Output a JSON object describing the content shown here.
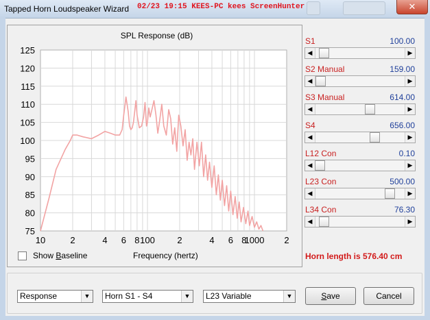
{
  "window": {
    "title": "Tapped Horn Loudspeaker Wizard",
    "watermark": "02/23  19:15  KEES-PC  kees  ScreenHunter",
    "close_glyph": "✕"
  },
  "chart_data": {
    "type": "line",
    "title": "SPL Response (dB)",
    "xlabel": "Frequency (hertz)",
    "ylabel": "",
    "x_scale": "log",
    "xlim": [
      10,
      2000
    ],
    "ylim": [
      75,
      125
    ],
    "grid": true,
    "y_ticks": [
      "125",
      "120",
      "115",
      "110",
      "105",
      "100",
      "95",
      "90",
      "85",
      "80",
      "75"
    ],
    "x_ticks": [
      {
        "x": 10,
        "label": "10"
      },
      {
        "x": 20,
        "label": "2"
      },
      {
        "x": 40,
        "label": "4"
      },
      {
        "x": 60,
        "label": "6"
      },
      {
        "x": 80,
        "label": "8"
      },
      {
        "x": 100,
        "label": "100"
      },
      {
        "x": 200,
        "label": "2"
      },
      {
        "x": 400,
        "label": "4"
      },
      {
        "x": 600,
        "label": "6"
      },
      {
        "x": 800,
        "label": "8"
      },
      {
        "x": 1000,
        "label": "1000"
      },
      {
        "x": 2000,
        "label": "2"
      }
    ],
    "line_color": "#f2a3a3",
    "series": [
      {
        "x": [
          10,
          12,
          14,
          17,
          19,
          20,
          22,
          25,
          30,
          35,
          40,
          45,
          50,
          55,
          58,
          60,
          63,
          66,
          68,
          70,
          72,
          74,
          76,
          78,
          80,
          84,
          88,
          92,
          95,
          98,
          100,
          103,
          106,
          110,
          115,
          120,
          125,
          130,
          136,
          142,
          150,
          158,
          165,
          172,
          180,
          188,
          196,
          205,
          215,
          225,
          235,
          245,
          255,
          265,
          275,
          290,
          305,
          320,
          335,
          350,
          365,
          380,
          400,
          420,
          440,
          460,
          480,
          500,
          525,
          550,
          575,
          600,
          630,
          660,
          690,
          720,
          750,
          790,
          830,
          870,
          900,
          950,
          1000,
          1050,
          1100,
          1150,
          1200
        ],
        "y": [
          75,
          84,
          92,
          97.5,
          100,
          101.5,
          101.5,
          101,
          100.5,
          101.5,
          102.5,
          102,
          101.5,
          101.5,
          103,
          107,
          112,
          108,
          104,
          103,
          103.5,
          105,
          108,
          111,
          107,
          103.5,
          104,
          106.5,
          110.5,
          104,
          105,
          109,
          106.5,
          108.5,
          111,
          107,
          102,
          105.5,
          110,
          104,
          101.5,
          108.5,
          106,
          99,
          103.5,
          97,
          107,
          104,
          98.5,
          103,
          94.5,
          99.5,
          96,
          100.5,
          92,
          99.5,
          93,
          99.5,
          90,
          96,
          89,
          94,
          87,
          93,
          85,
          90.5,
          83.5,
          89,
          82,
          87.5,
          80.5,
          86,
          79.5,
          84.5,
          78.5,
          83,
          77.5,
          81.5,
          77,
          80.5,
          76.5,
          79,
          76,
          77.5,
          75.5,
          76.5,
          75
        ]
      }
    ]
  },
  "sliders": [
    {
      "label": "S1",
      "value": "100.00",
      "position": 0.05
    },
    {
      "label": "S2  Manual",
      "value": "159.00",
      "position": 0.01
    },
    {
      "label": "S3  Manual",
      "value": "614.00",
      "position": 0.62
    },
    {
      "label": "S4",
      "value": "656.00",
      "position": 0.68
    },
    {
      "label": "L12  Con",
      "value": "0.10",
      "position": 0.0
    },
    {
      "label": "L23  Con",
      "value": "500.00",
      "position": 0.87
    },
    {
      "label": "L34  Con",
      "value": "76.30",
      "position": 0.05
    }
  ],
  "horn_length": "Horn length is 576.40 cm",
  "show_baseline": {
    "label_prefix": "Show ",
    "label_accel": "B",
    "label_rest": "aseline",
    "checked": false
  },
  "dropdowns": {
    "view": "Response",
    "horn": "Horn S1 - S4",
    "variable": "L23 Variable"
  },
  "buttons": {
    "save_accel": "S",
    "save_rest": "ave",
    "cancel": "Cancel"
  }
}
